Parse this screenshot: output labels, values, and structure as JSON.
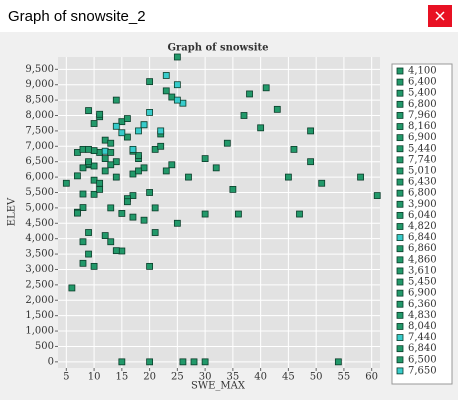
{
  "window": {
    "title": "Graph of snowsite_2"
  },
  "chart_data": {
    "type": "scatter",
    "title": "Graph of snowsite",
    "x_label": "SWE_MAX",
    "y_label": "ELEV",
    "xlim": [
      3.5,
      61.5
    ],
    "xticks": [
      5,
      10,
      15,
      20,
      25,
      30,
      35,
      40,
      45,
      50,
      55,
      60
    ],
    "ylim": [
      -200,
      9900
    ],
    "yticks": [
      0,
      500,
      {
        "value": 1000,
        "label": "1,000"
      },
      {
        "value": 1500,
        "label": "1,500"
      },
      {
        "value": 2000,
        "label": "2,000"
      },
      {
        "value": 2500,
        "label": "2,500"
      },
      {
        "value": 3000,
        "label": "3,000"
      },
      {
        "value": 3500,
        "label": "3,500"
      },
      {
        "value": 4000,
        "label": "4,000"
      },
      {
        "value": 4500,
        "label": "4,500"
      },
      {
        "value": 5000,
        "label": "5,000"
      },
      {
        "value": 5500,
        "label": "5,500"
      },
      {
        "value": 6000,
        "label": "6,000"
      },
      {
        "value": 6500,
        "label": "6,500"
      },
      {
        "value": 7000,
        "label": "7,000"
      },
      {
        "value": 7500,
        "label": "7,500"
      },
      {
        "value": 8000,
        "label": "8,000"
      },
      {
        "value": 8500,
        "label": "8,500"
      },
      {
        "value": 9000,
        "label": "9,000"
      },
      {
        "value": 9500,
        "label": "9,500"
      }
    ],
    "grid": true,
    "legend": "right",
    "series": [
      {
        "name": "4,100",
        "color": "#22996a",
        "x": [
          6,
          8,
          15,
          54
        ],
        "values": [
          2400,
          3900,
          3600,
          0
        ]
      },
      {
        "name": "6,400",
        "color": "#22996a",
        "x": [
          5,
          9,
          25,
          41
        ],
        "values": [
          5800,
          6400,
          9900,
          8900
        ]
      },
      {
        "name": "5,400",
        "color": "#22996a",
        "x": [
          10,
          17,
          20,
          61
        ],
        "values": [
          3100,
          5400,
          0,
          5400
        ]
      },
      {
        "name": "6,800",
        "color": "#22996a",
        "x": [
          7,
          12,
          30,
          46
        ],
        "values": [
          6800,
          7200,
          0,
          6900
        ]
      },
      {
        "name": "7,960",
        "color": "#22996a",
        "x": [
          11,
          14,
          23,
          38
        ],
        "values": [
          7960,
          8500,
          8800,
          8700
        ]
      },
      {
        "name": "8,160",
        "color": "#22996a",
        "x": [
          9,
          19,
          24,
          43
        ],
        "values": [
          8160,
          7700,
          8600,
          8200
        ]
      },
      {
        "name": "6,900",
        "color": "#22996a",
        "x": [
          8,
          13,
          18,
          49
        ],
        "values": [
          6900,
          7100,
          6600,
          6500
        ]
      },
      {
        "name": "5,440",
        "color": "#22996a",
        "x": [
          10,
          16,
          21,
          36
        ],
        "values": [
          5440,
          5300,
          5000,
          4800
        ]
      },
      {
        "name": "7,740",
        "color": "#22996a",
        "x": [
          10,
          15,
          22,
          49
        ],
        "values": [
          7740,
          7800,
          7400,
          7500
        ]
      },
      {
        "name": "5,010",
        "color": "#22996a",
        "x": [
          8,
          11,
          16,
          30
        ],
        "values": [
          5010,
          5600,
          5200,
          4800
        ]
      },
      {
        "name": "6,430",
        "color": "#22996a",
        "x": [
          9,
          12,
          19,
          27
        ],
        "values": [
          6430,
          6200,
          6300,
          6000
        ]
      },
      {
        "name": "6,800",
        "color": "#22996a",
        "x": [
          11,
          14,
          21,
          34
        ],
        "values": [
          6800,
          6500,
          6900,
          7100
        ]
      },
      {
        "name": "3,900",
        "color": "#22996a",
        "x": [
          8,
          13,
          20,
          26
        ],
        "values": [
          3200,
          3900,
          3100,
          0
        ]
      },
      {
        "name": "6,040",
        "color": "#22996a",
        "x": [
          7,
          10,
          17,
          58
        ],
        "values": [
          6040,
          5900,
          6100,
          6000
        ]
      },
      {
        "name": "4,820",
        "color": "#22996a",
        "x": [
          9,
          15,
          21,
          47
        ],
        "values": [
          4200,
          4820,
          4200,
          4800
        ]
      },
      {
        "name": "6,840",
        "color": "#38cccc",
        "x": [
          12,
          18,
          23,
          25
        ],
        "values": [
          6840,
          7500,
          9300,
          9000
        ]
      },
      {
        "name": "6,860",
        "color": "#22996a",
        "x": [
          10,
          13,
          18,
          32
        ],
        "values": [
          6860,
          6400,
          6700,
          6300
        ]
      },
      {
        "name": "4,860",
        "color": "#22996a",
        "x": [
          7,
          12,
          17,
          25
        ],
        "values": [
          4860,
          4100,
          4700,
          4500
        ]
      },
      {
        "name": "3,610",
        "color": "#22996a",
        "x": [
          9,
          14,
          15,
          28
        ],
        "values": [
          3500,
          3610,
          0,
          0
        ]
      },
      {
        "name": "5,450",
        "color": "#22996a",
        "x": [
          8,
          11,
          20,
          35
        ],
        "values": [
          5450,
          5800,
          5500,
          5600
        ]
      },
      {
        "name": "6,900",
        "color": "#22996a",
        "x": [
          9,
          16,
          22,
          40
        ],
        "values": [
          6900,
          7300,
          7000,
          7600
        ]
      },
      {
        "name": "6,360",
        "color": "#22996a",
        "x": [
          10,
          14,
          24,
          45
        ],
        "values": [
          6360,
          6000,
          6400,
          6000
        ]
      },
      {
        "name": "4,830",
        "color": "#22996a",
        "x": [
          7,
          13,
          19,
          51
        ],
        "values": [
          4830,
          5000,
          4600,
          5800
        ]
      },
      {
        "name": "8,040",
        "color": "#22996a",
        "x": [
          11,
          16,
          20,
          37
        ],
        "values": [
          8040,
          7900,
          9100,
          8000
        ]
      },
      {
        "name": "7,440",
        "color": "#38cccc",
        "x": [
          15,
          19,
          22,
          26
        ],
        "values": [
          7440,
          7700,
          7500,
          8400
        ]
      },
      {
        "name": "6,840",
        "color": "#22996a",
        "x": [
          8,
          12,
          17,
          23
        ],
        "values": [
          6300,
          6600,
          6840,
          6200
        ]
      },
      {
        "name": "6,500",
        "color": "#22996a",
        "x": [
          9,
          13,
          18,
          30
        ],
        "values": [
          6500,
          6800,
          6200,
          6600
        ]
      },
      {
        "name": "7,650",
        "color": "#38cccc",
        "x": [
          14,
          20,
          25,
          17
        ],
        "values": [
          7650,
          8100,
          8500,
          6900
        ]
      }
    ]
  }
}
